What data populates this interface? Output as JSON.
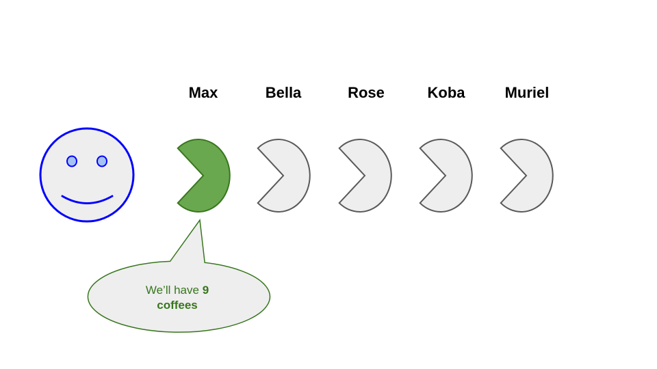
{
  "names": [
    "Max",
    "Bella",
    "Rose",
    "Koba",
    "Muriel"
  ],
  "speech": {
    "prefix": "We’ll have ",
    "count": "9",
    "suffix": "coffees"
  },
  "colors": {
    "face_stroke": "#0000ff",
    "face_fill": "#eeeeee",
    "active_fill": "#6aa84f",
    "active_stroke": "#38761d",
    "inactive_fill": "#eeeeee",
    "inactive_stroke": "#595959",
    "bubble_fill": "#eeeeee",
    "bubble_stroke": "#38761d",
    "speech_text": "#38761d"
  }
}
